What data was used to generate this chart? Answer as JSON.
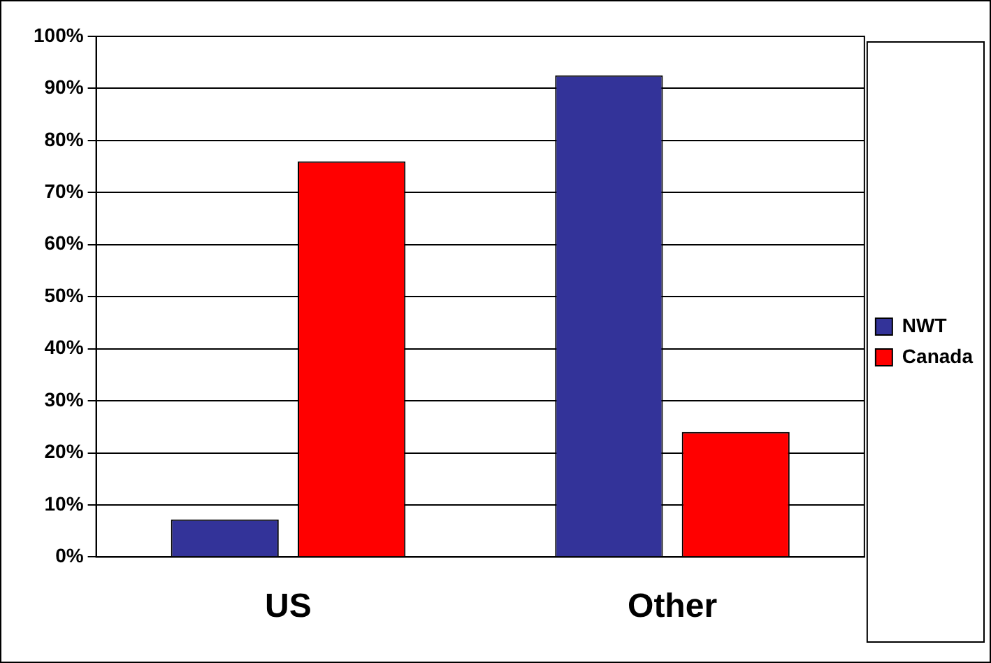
{
  "chart_data": {
    "type": "bar",
    "categories": [
      "US",
      "Other"
    ],
    "series": [
      {
        "name": "NWT",
        "color": "#333399",
        "values": [
          7.2,
          92.5
        ]
      },
      {
        "name": "Canada",
        "color": "#ff0000",
        "values": [
          76,
          24
        ]
      }
    ],
    "ylim": [
      0,
      100
    ],
    "yticks": [
      {
        "value": 0,
        "label": "0%"
      },
      {
        "value": 10,
        "label": "10%"
      },
      {
        "value": 20,
        "label": "20%"
      },
      {
        "value": 30,
        "label": "30%"
      },
      {
        "value": 40,
        "label": "40%"
      },
      {
        "value": 50,
        "label": "50%"
      },
      {
        "value": 60,
        "label": "60%"
      },
      {
        "value": 70,
        "label": "70%"
      },
      {
        "value": 80,
        "label": "80%"
      },
      {
        "value": 90,
        "label": "90%"
      },
      {
        "value": 100,
        "label": "100%"
      }
    ],
    "grid": "y",
    "legend": "right"
  }
}
